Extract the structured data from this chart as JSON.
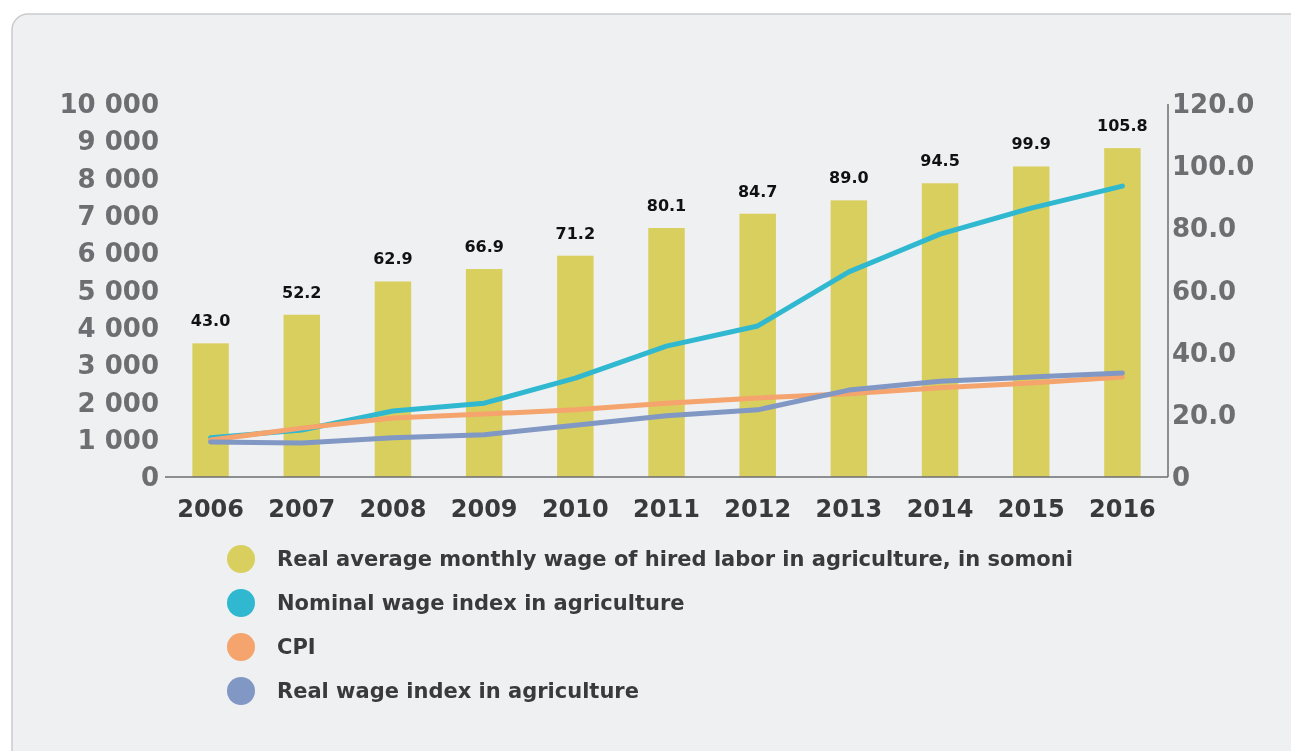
{
  "chart_data": {
    "type": "bar",
    "categories": [
      "2006",
      "2007",
      "2008",
      "2009",
      "2010",
      "2011",
      "2012",
      "2013",
      "2014",
      "2015",
      "2016"
    ],
    "series": [
      {
        "name": "Real average monthly wage of hired labor in agriculture, in somoni",
        "axis": "y2",
        "color": "#d9cf5e",
        "values": [
          43.0,
          52.2,
          62.9,
          66.9,
          71.2,
          80.1,
          84.7,
          89.0,
          94.5,
          99.9,
          105.8
        ],
        "value_labels": [
          "43.0",
          "52.2",
          "62.9",
          "66.9",
          "71.2",
          "80.1",
          "84.7",
          "89.0",
          "94.5",
          "99.9",
          "105.8"
        ]
      },
      {
        "name": "Nominal wage index in agriculture",
        "type": "line",
        "color": "#2fb8d0",
        "values": [
          1050,
          1260,
          1770,
          1980,
          2650,
          3510,
          4050,
          5500,
          6510,
          7210,
          7800
        ]
      },
      {
        "name": "CPI",
        "type": "line",
        "color": "#f4a46c",
        "values": [
          990,
          1310,
          1580,
          1690,
          1800,
          1980,
          2120,
          2230,
          2390,
          2520,
          2680
        ]
      },
      {
        "name": "Real wage index in agriculture",
        "type": "line",
        "color": "#8197c4",
        "values": [
          940,
          910,
          1050,
          1130,
          1390,
          1640,
          1800,
          2330,
          2570,
          2680,
          2790
        ]
      }
    ],
    "ylim": [
      0,
      10000
    ],
    "yticks": [
      0,
      {
        "value": 1000,
        "label": "1 000"
      },
      {
        "value": 2000,
        "label": "2 000"
      },
      {
        "value": 3000,
        "label": "3 000"
      },
      {
        "value": 4000,
        "label": "4 000"
      },
      {
        "value": 5000,
        "label": "5 000"
      },
      {
        "value": 6000,
        "label": "6 000"
      },
      {
        "value": 7000,
        "label": "7 000"
      },
      {
        "value": 8000,
        "label": "8 000"
      },
      {
        "value": 9000,
        "label": "9 000"
      },
      {
        "value": 10000,
        "label": "10 000"
      }
    ],
    "y2lim": [
      0,
      120
    ],
    "y2ticks": [
      0,
      {
        "value": 20,
        "label": "20.0"
      },
      {
        "value": 40,
        "label": "40.0"
      },
      {
        "value": 60,
        "label": "60.0"
      },
      {
        "value": 80,
        "label": "80.0"
      },
      {
        "value": 100,
        "label": "100.0"
      },
      {
        "value": 120,
        "label": "120.0"
      }
    ],
    "legend": "bottom",
    "marker": "none",
    "line_style": "solid",
    "grid": false
  }
}
